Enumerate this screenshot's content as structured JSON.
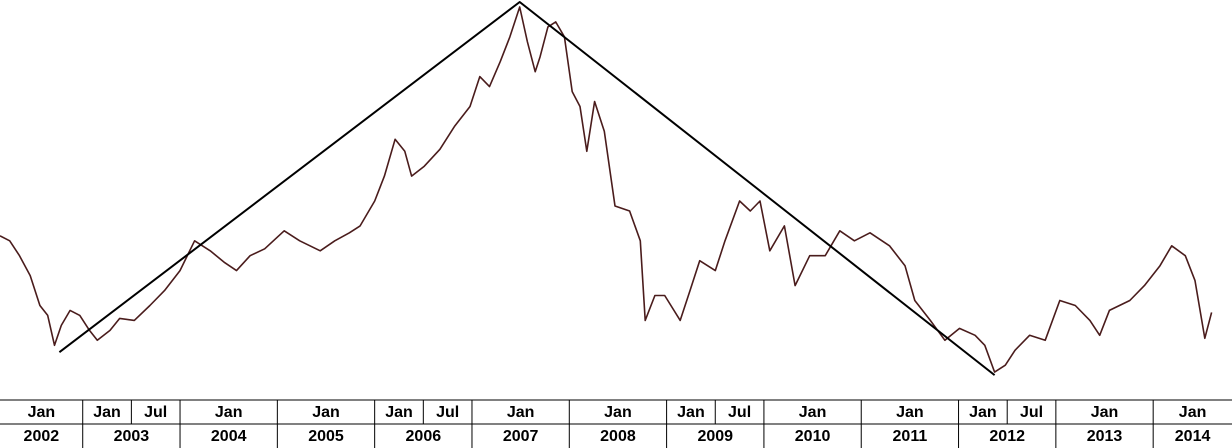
{
  "chart_data": {
    "type": "line",
    "x": [
      2002.15,
      2002.25,
      2002.35,
      2002.46,
      2002.56,
      2002.64,
      2002.71,
      2002.78,
      2002.87,
      2002.97,
      2003.07,
      2003.15,
      2003.28,
      2003.38,
      2003.53,
      2003.69,
      2003.84,
      2004.0,
      2004.15,
      2004.31,
      2004.46,
      2004.58,
      2004.72,
      2004.87,
      2005.07,
      2005.23,
      2005.44,
      2005.59,
      2005.74,
      2005.85,
      2006.0,
      2006.1,
      2006.21,
      2006.31,
      2006.38,
      2006.51,
      2006.67,
      2006.82,
      2006.98,
      2007.08,
      2007.18,
      2007.29,
      2007.39,
      2007.49,
      2007.57,
      2007.65,
      2007.7,
      2007.78,
      2007.86,
      2007.95,
      2008.03,
      2008.11,
      2008.18,
      2008.26,
      2008.36,
      2008.47,
      2008.62,
      2008.73,
      2008.78,
      2008.88,
      2008.98,
      2009.14,
      2009.24,
      2009.34,
      2009.5,
      2009.6,
      2009.75,
      2009.86,
      2009.96,
      2010.06,
      2010.21,
      2010.32,
      2010.47,
      2010.63,
      2010.78,
      2010.93,
      2011.09,
      2011.29,
      2011.45,
      2011.55,
      2011.71,
      2011.86,
      2012.01,
      2012.17,
      2012.27,
      2012.37,
      2012.48,
      2012.58,
      2012.73,
      2012.89,
      2013.04,
      2013.2,
      2013.35,
      2013.45,
      2013.55,
      2013.76,
      2013.91,
      2014.07,
      2014.19,
      2014.33,
      2014.43,
      2014.53,
      2014.6
    ],
    "values": [
      41.25,
      40,
      36.25,
      31.25,
      23.75,
      21.25,
      13.75,
      18.75,
      22.5,
      21.25,
      17.5,
      15,
      17.5,
      20.5,
      20,
      23.75,
      27.5,
      32.5,
      40,
      37.5,
      34.5,
      32.5,
      36.25,
      38,
      42.5,
      40,
      37.5,
      40,
      42,
      43.75,
      50,
      56.25,
      65.5,
      62.5,
      56.25,
      58.75,
      63,
      68.75,
      73.75,
      81.25,
      78.75,
      85,
      91.25,
      98.75,
      90,
      82.5,
      86.25,
      93.75,
      95,
      91.25,
      77.5,
      73.75,
      62.5,
      75,
      67.5,
      48.75,
      47.5,
      40,
      20,
      26.25,
      26.25,
      20,
      27.5,
      35,
      32.5,
      40,
      50,
      47.5,
      50,
      37.5,
      43.75,
      28.75,
      36.25,
      36.25,
      42.5,
      40,
      42,
      38.75,
      33.75,
      25,
      20,
      15,
      18,
      16.25,
      13.75,
      7,
      8.75,
      12.5,
      16.25,
      15,
      25,
      23.75,
      20,
      16.25,
      22.5,
      25,
      28.75,
      33.75,
      38.75,
      36.25,
      30,
      15.5,
      22
    ],
    "color": "#4a1c1c",
    "trend_line": {
      "x": [
        2002.76,
        2007.49,
        2012.37
      ],
      "values": [
        12,
        100,
        6.25
      ],
      "color": "#000000"
    },
    "xlim": [
      2002.15,
      2014.81
    ],
    "ylim": [
      0,
      100
    ],
    "month_ticks": [
      {
        "value": 2002,
        "label": "Jan"
      },
      {
        "value": 2003,
        "label": "Jan"
      },
      {
        "value": 2003.5,
        "label": "Jul"
      },
      {
        "value": 2004,
        "label": "Jan"
      },
      {
        "value": 2005,
        "label": "Jan"
      },
      {
        "value": 2006,
        "label": "Jan"
      },
      {
        "value": 2006.5,
        "label": "Jul"
      },
      {
        "value": 2007,
        "label": "Jan"
      },
      {
        "value": 2008,
        "label": "Jan"
      },
      {
        "value": 2009,
        "label": "Jan"
      },
      {
        "value": 2009.5,
        "label": "Jul"
      },
      {
        "value": 2010,
        "label": "Jan"
      },
      {
        "value": 2011,
        "label": "Jan"
      },
      {
        "value": 2012,
        "label": "Jan"
      },
      {
        "value": 2012.5,
        "label": "Jul"
      },
      {
        "value": 2013,
        "label": "Jan"
      },
      {
        "value": 2014,
        "label": "Jan"
      }
    ],
    "xticks": [
      2002,
      2003,
      2004,
      2005,
      2006,
      2007,
      2008,
      2009,
      2010,
      2011,
      2012,
      2013,
      2014
    ]
  }
}
